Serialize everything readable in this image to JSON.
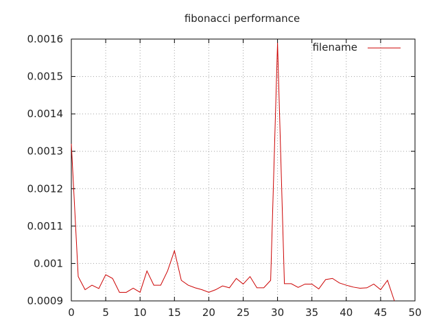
{
  "chart_data": {
    "type": "line",
    "title": "fibonacci performance",
    "xlabel": "",
    "ylabel": "",
    "xlim": [
      0,
      50
    ],
    "ylim": [
      0.0009,
      0.0016
    ],
    "xticks": [
      "0",
      "5",
      "10",
      "15",
      "20",
      "25",
      "30",
      "35",
      "40",
      "45",
      "50"
    ],
    "yticks": [
      "0.0009",
      "0.001",
      "0.0011",
      "0.0012",
      "0.0013",
      "0.0014",
      "0.0015",
      "0.0016"
    ],
    "grid": true,
    "legend": "top-right",
    "series": [
      {
        "name": "filename",
        "color": "#cc0000",
        "x": [
          0,
          1,
          2,
          3,
          4,
          5,
          6,
          7,
          8,
          9,
          10,
          11,
          12,
          13,
          14,
          15,
          16,
          17,
          18,
          19,
          20,
          21,
          22,
          23,
          24,
          25,
          26,
          27,
          28,
          29,
          30,
          31,
          32,
          33,
          34,
          35,
          36,
          37,
          38,
          39,
          40,
          41,
          42,
          43,
          44,
          45,
          46,
          47
        ],
        "y": [
          0.00132,
          0.000965,
          0.00093,
          0.000942,
          0.000933,
          0.00097,
          0.00096,
          0.000923,
          0.000923,
          0.000934,
          0.000923,
          0.00098,
          0.000942,
          0.000942,
          0.00098,
          0.001034,
          0.000955,
          0.000942,
          0.000935,
          0.00093,
          0.000923,
          0.00093,
          0.00094,
          0.000935,
          0.00096,
          0.000945,
          0.000965,
          0.000935,
          0.000935,
          0.000955,
          0.00159,
          0.000946,
          0.000946,
          0.000936,
          0.000945,
          0.000945,
          0.000932,
          0.000957,
          0.00096,
          0.000948,
          0.000942,
          0.000937,
          0.000934,
          0.000935,
          0.000945,
          0.00093,
          0.000955,
          0.0009
        ]
      }
    ]
  }
}
